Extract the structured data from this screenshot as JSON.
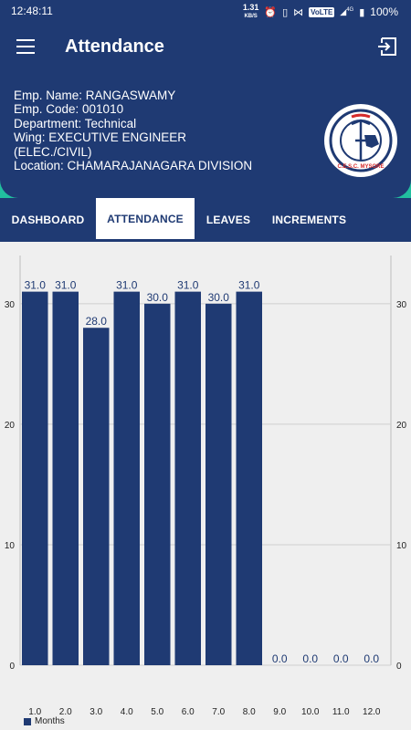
{
  "status_bar": {
    "time": "12:48:11",
    "speed_value": "1.31",
    "speed_unit": "KB/S",
    "network_label": "VoLTE",
    "signal_label": "4G",
    "battery": "100%"
  },
  "app_bar": {
    "title": "Attendance",
    "menu_icon": "hamburger-menu-icon",
    "logout_icon": "logout-icon"
  },
  "profile": {
    "name": "Emp. Name: RANGASWAMY",
    "code": "Emp. Code: 001010",
    "department": "Department: Technical",
    "wing_line1": "Wing: EXECUTIVE ENGINEER",
    "wing_line2": "(ELEC./CIVIL)",
    "location": "Location: CHAMARAJANAGARA DIVISION",
    "logo_text": "C.E.S.C. MYSORE"
  },
  "tabs": [
    {
      "label": "DASHBOARD",
      "active": false
    },
    {
      "label": "ATTENDANCE",
      "active": true
    },
    {
      "label": "LEAVES",
      "active": false
    },
    {
      "label": "INCREMENTS",
      "active": false
    }
  ],
  "colors": {
    "primary": "#1f3a73",
    "accent": "#21bf9f"
  },
  "chart_data": {
    "type": "bar",
    "categories": [
      "1.0",
      "2.0",
      "3.0",
      "4.0",
      "5.0",
      "6.0",
      "7.0",
      "8.0",
      "9.0",
      "10.0",
      "11.0",
      "12.0"
    ],
    "series": [
      {
        "name": "Months",
        "values": [
          31.0,
          31.0,
          28.0,
          31.0,
          30.0,
          31.0,
          30.0,
          31.0,
          0.0,
          0.0,
          0.0,
          0.0
        ]
      }
    ],
    "data_labels": [
      "31.0",
      "31.0",
      "28.0",
      "31.0",
      "30.0",
      "31.0",
      "30.0",
      "31.0",
      "0.0",
      "0.0",
      "0.0",
      "0.0"
    ],
    "y_ticks": [
      0,
      10,
      20,
      30
    ],
    "ylim": [
      0,
      34
    ],
    "legend": "bottom-left",
    "legend_label": "Months",
    "grid": true
  }
}
